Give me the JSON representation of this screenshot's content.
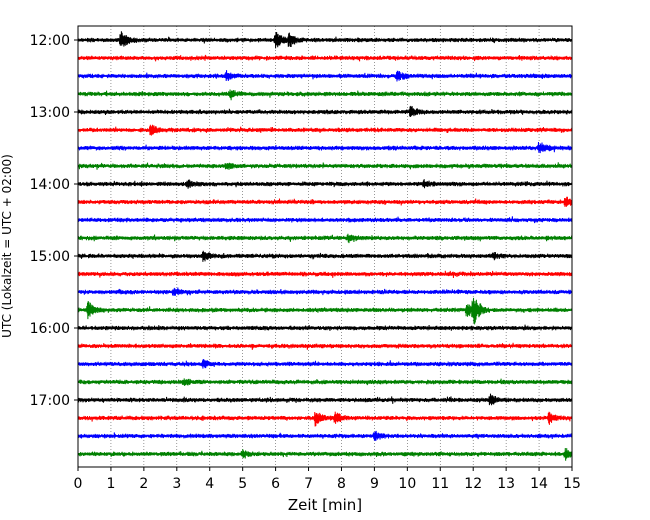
{
  "chart_data": {
    "type": "line",
    "title": "",
    "xlabel": "Zeit  [min]",
    "ylabel": "UTC (Lokalzeit = UTC + 02:00)",
    "xlim": [
      0,
      15
    ],
    "x_ticks": [
      "0",
      "1",
      "2",
      "3",
      "4",
      "5",
      "6",
      "7",
      "8",
      "9",
      "10",
      "11",
      "12",
      "13",
      "14",
      "15"
    ],
    "y_tick_labels": [
      "12:00",
      "13:00",
      "14:00",
      "15:00",
      "16:00",
      "17:00"
    ],
    "grid": "vertical dotted at each minute",
    "trace_minutes": 15,
    "trace_colors": [
      "#000000",
      "#ff0000",
      "#0000ff",
      "#008000"
    ],
    "series": [
      {
        "start": "12:00",
        "events": [
          {
            "t": 1.3,
            "amp": 1.0
          },
          {
            "t": 6.0,
            "amp": 0.9
          },
          {
            "t": 6.4,
            "amp": 0.7
          }
        ]
      },
      {
        "start": "12:15",
        "events": []
      },
      {
        "start": "12:30",
        "events": [
          {
            "t": 4.5,
            "amp": 0.5
          },
          {
            "t": 9.7,
            "amp": 0.6
          }
        ]
      },
      {
        "start": "12:45",
        "events": [
          {
            "t": 4.6,
            "amp": 0.4
          }
        ]
      },
      {
        "start": "13:00",
        "events": [
          {
            "t": 10.1,
            "amp": 0.6
          }
        ]
      },
      {
        "start": "13:15",
        "events": [
          {
            "t": 2.2,
            "amp": 0.6
          }
        ]
      },
      {
        "start": "13:30",
        "events": [
          {
            "t": 14.0,
            "amp": 0.7
          }
        ]
      },
      {
        "start": "13:45",
        "events": [
          {
            "t": 4.5,
            "amp": 0.3
          }
        ]
      },
      {
        "start": "14:00",
        "events": [
          {
            "t": 3.3,
            "amp": 0.4
          },
          {
            "t": 10.5,
            "amp": 0.35
          }
        ]
      },
      {
        "start": "14:15",
        "events": [
          {
            "t": 14.8,
            "amp": 0.5
          }
        ]
      },
      {
        "start": "14:30",
        "events": []
      },
      {
        "start": "14:45",
        "events": [
          {
            "t": 8.2,
            "amp": 0.4
          }
        ]
      },
      {
        "start": "15:00",
        "events": [
          {
            "t": 3.8,
            "amp": 0.5
          },
          {
            "t": 12.6,
            "amp": 0.3
          }
        ]
      },
      {
        "start": "15:15",
        "events": []
      },
      {
        "start": "15:30",
        "events": [
          {
            "t": 2.9,
            "amp": 0.4
          }
        ]
      },
      {
        "start": "15:45",
        "events": [
          {
            "t": 0.3,
            "amp": 0.9
          },
          {
            "t": 11.8,
            "amp": 0.8
          },
          {
            "t": 12.0,
            "amp": 1.6
          }
        ]
      },
      {
        "start": "16:00",
        "events": []
      },
      {
        "start": "16:15",
        "events": []
      },
      {
        "start": "16:30",
        "events": [
          {
            "t": 3.8,
            "amp": 0.4
          }
        ]
      },
      {
        "start": "16:45",
        "events": [
          {
            "t": 3.2,
            "amp": 0.3
          }
        ]
      },
      {
        "start": "17:00",
        "events": [
          {
            "t": 12.5,
            "amp": 0.6
          }
        ]
      },
      {
        "start": "17:15",
        "events": [
          {
            "t": 7.2,
            "amp": 0.8
          },
          {
            "t": 7.8,
            "amp": 0.6
          },
          {
            "t": 14.3,
            "amp": 0.6
          }
        ]
      },
      {
        "start": "17:30",
        "events": [
          {
            "t": 9.0,
            "amp": 0.5
          }
        ]
      },
      {
        "start": "17:45",
        "events": [
          {
            "t": 5.0,
            "amp": 0.4
          },
          {
            "t": 14.8,
            "amp": 0.6
          }
        ]
      }
    ]
  }
}
